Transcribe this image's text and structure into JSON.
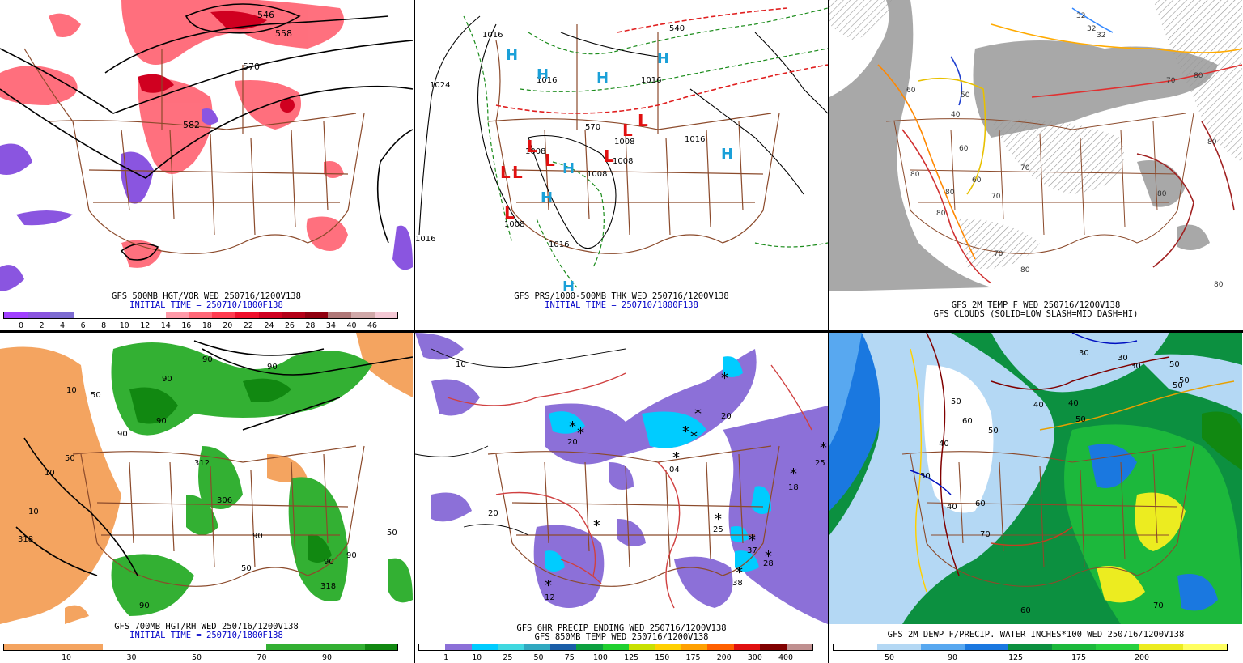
{
  "panels": [
    {
      "caption_lines": [
        "GFS 500MB HGT/VOR WED 250716/1200V138",
        "INITIAL TIME = 250710/1800F138"
      ],
      "colorbar": {
        "colors": [
          "#a040ff",
          "#8a55e0",
          "#7d6cd2",
          "#ffffff",
          "#ffffff",
          "#ffffff",
          "#ffffff",
          "#ff9aa8",
          "#ff6878",
          "#ff3c50",
          "#f0102c",
          "#d00020",
          "#b40018",
          "#900010",
          "#b07878",
          "#d0a8a8",
          "#f4c8d4"
        ],
        "labels": [
          "0",
          "2",
          "4",
          "6",
          "8",
          "10",
          "12",
          "14",
          "16",
          "18",
          "20",
          "22",
          "24",
          "26",
          "28",
          "34",
          "40",
          "46"
        ]
      },
      "contour_labels": [
        "546",
        "558",
        "570",
        "582"
      ]
    },
    {
      "caption_lines": [
        "GFS PRS/1000-500MB THK WED 250716/1200V138",
        "INITIAL TIME = 250710/1800F138"
      ],
      "contour_labels": [
        "1016",
        "1024",
        "1008",
        "1008",
        "1016",
        "1016",
        "1008",
        "1008",
        "1016",
        "540",
        "570",
        "1016",
        "1016",
        "1008"
      ],
      "high_marks": [
        "H",
        "H",
        "H",
        "H",
        "H",
        "H",
        "H",
        "H"
      ],
      "low_marks": [
        "L",
        "L",
        "L",
        "L",
        "L",
        "L",
        "L",
        "L"
      ]
    },
    {
      "caption_lines": [
        "GFS 2M TEMP F WED 250716/1200V138",
        "GFS CLOUDS (SOLID=LOW SLASH=MID DASH=HI)"
      ],
      "contour_labels": [
        "32",
        "32",
        "32",
        "40",
        "50",
        "60",
        "70",
        "80",
        "80",
        "70",
        "80",
        "80",
        "80",
        "80",
        "70",
        "60",
        "80",
        "60",
        "80",
        "70"
      ]
    },
    {
      "caption_lines": [
        "GFS 700MB HGT/RH WED 250716/1200V138",
        "INITIAL TIME = 250710/1800F138"
      ],
      "colorbar": {
        "colors": [
          "#f4a460",
          "#f4a460",
          "#f4a460",
          "#ffffff",
          "#ffffff",
          "#ffffff",
          "#ffffff",
          "#ffffff",
          "#33b033",
          "#33b033",
          "#33b033",
          "#118811"
        ],
        "labels": [
          "10",
          "30",
          "50",
          "70",
          "90"
        ]
      },
      "contour_labels": [
        "10",
        "10",
        "10",
        "50",
        "318",
        "312",
        "306",
        "90",
        "90",
        "90",
        "90",
        "50",
        "90",
        "90",
        "90",
        "90",
        "318",
        "50",
        "50",
        "90"
      ]
    },
    {
      "caption_lines": [
        "GFS 6HR PRECIP ENDING WED 250716/1200V138",
        "GFS 850MB TEMP WED 250716/1200V138"
      ],
      "colorbar": {
        "colors": [
          "#ffffff",
          "#8c70d8",
          "#00ccff",
          "#40d8e0",
          "#30a8c0",
          "#1a5ea8",
          "#0ca040",
          "#20d030",
          "#c8e000",
          "#ffd000",
          "#ffa000",
          "#ff6000",
          "#e01010",
          "#800000",
          "#c09090"
        ],
        "labels": [
          "1",
          "10",
          "25",
          "50",
          "75",
          "100",
          "125",
          "150",
          "175",
          "200",
          "300",
          "400"
        ]
      },
      "contour_labels": [
        "20",
        "04",
        "25",
        "18",
        "25",
        "37",
        "28",
        "38",
        "12",
        "20",
        "10",
        "20"
      ]
    },
    {
      "caption_lines": [
        "GFS 2M DEWP F/PRECIP. WATER INCHES*100 WED 250716/1200V138"
      ],
      "colorbar": {
        "colors": [
          "#ffffff",
          "#b4d8f4",
          "#58a8f0",
          "#1a78e0",
          "#0c9040",
          "#1cb83c",
          "#28d040",
          "#ecec20",
          "#ffff60"
        ],
        "labels": [
          "50",
          "90",
          "125",
          "175",
          "200"
        ]
      },
      "contour_labels": [
        "30",
        "30",
        "30",
        "30",
        "50",
        "50",
        "50",
        "40",
        "50",
        "50",
        "60",
        "50",
        "40",
        "40",
        "40",
        "60",
        "70",
        "70",
        "60"
      ]
    }
  ]
}
